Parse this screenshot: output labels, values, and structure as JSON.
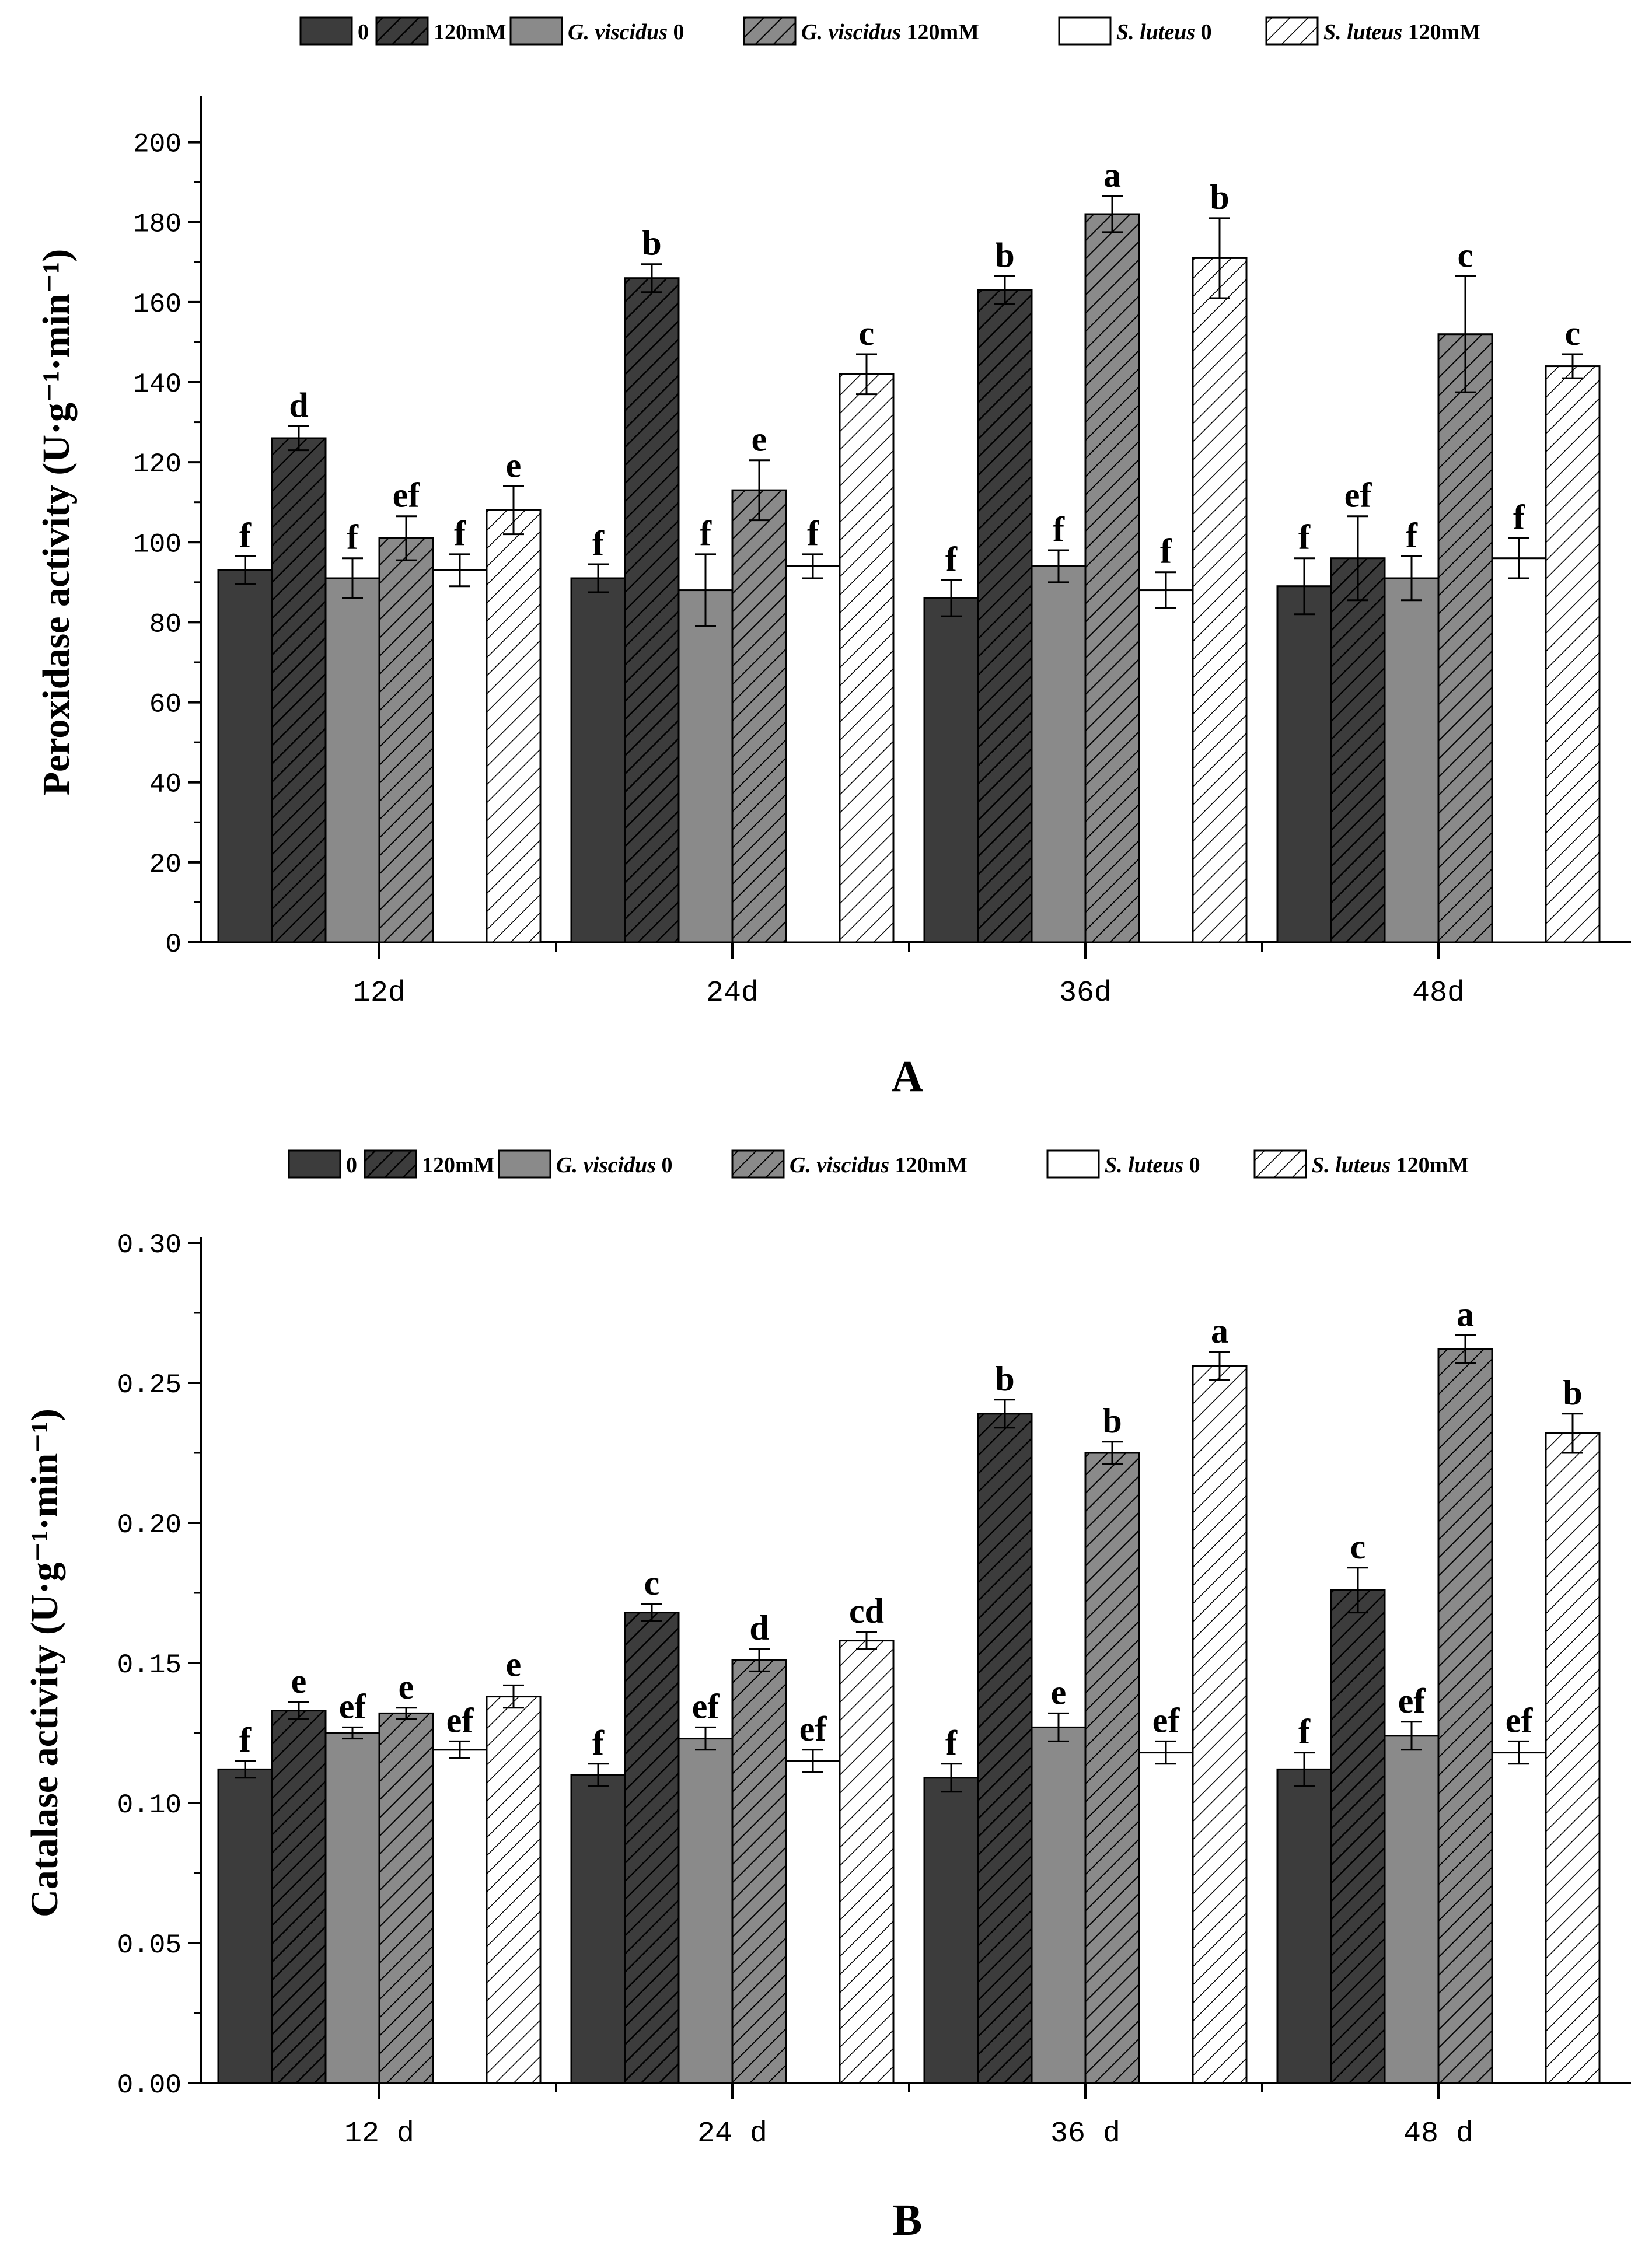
{
  "colors": {
    "control": "#3c3c3c",
    "gv": "#8a8a8a",
    "sl": "#ffffff",
    "stroke": "#000000"
  },
  "legend": [
    {
      "key": "c0",
      "italic": "",
      "rest": "0",
      "fill": "control",
      "hatch": false
    },
    {
      "key": "c120",
      "italic": "",
      "rest": "120mM",
      "fill": "control",
      "hatch": true
    },
    {
      "key": "gv0",
      "italic": "G. viscidus",
      "rest": " 0",
      "fill": "gv",
      "hatch": false
    },
    {
      "key": "gv120",
      "italic": "G. viscidus",
      "rest": " 120mM",
      "fill": "gv",
      "hatch": true
    },
    {
      "key": "sl0",
      "italic": "S. luteus",
      "rest": " 0",
      "fill": "sl",
      "hatch": false
    },
    {
      "key": "sl120",
      "italic": "S. luteus",
      "rest": " 120mM",
      "fill": "sl",
      "hatch": true
    }
  ],
  "chart_data": [
    {
      "type": "bar",
      "panel": "A",
      "ylabel": "Peroxidase activity (U·g⁻¹·min⁻¹)",
      "ylim": [
        0,
        210
      ],
      "yticks": [
        0,
        20,
        40,
        60,
        80,
        100,
        120,
        140,
        160,
        180,
        200
      ],
      "ytick_labels": [
        "0",
        "20",
        "40",
        "60",
        "80",
        "100",
        "120",
        "140",
        "160",
        "180",
        "200"
      ],
      "categories": [
        "12d",
        "24d",
        "36d",
        "48d"
      ],
      "series": [
        {
          "name": "0",
          "values": [
            93,
            91,
            86,
            89
          ],
          "errors": [
            3.5,
            3.5,
            4.5,
            7
          ],
          "letters": [
            "f",
            "f",
            "f",
            "f"
          ]
        },
        {
          "name": "120mM",
          "values": [
            126,
            166,
            163,
            96
          ],
          "errors": [
            3,
            3.5,
            3.5,
            10.5
          ],
          "letters": [
            "d",
            "b",
            "b",
            "ef"
          ]
        },
        {
          "name": "G. viscidus 0",
          "values": [
            91,
            88,
            94,
            91
          ],
          "errors": [
            5,
            9,
            4,
            5.5
          ],
          "letters": [
            "f",
            "f",
            "f",
            "f"
          ]
        },
        {
          "name": "G. viscidus 120mM",
          "values": [
            101,
            113,
            182,
            152
          ],
          "errors": [
            5.5,
            7.5,
            4.5,
            14.5
          ],
          "letters": [
            "ef",
            "e",
            "a",
            "c"
          ]
        },
        {
          "name": "S. luteus 0",
          "values": [
            93,
            94,
            88,
            96
          ],
          "errors": [
            4,
            3,
            4.5,
            5
          ],
          "letters": [
            "f",
            "f",
            "f",
            "f"
          ]
        },
        {
          "name": "S. luteus 120mM",
          "values": [
            108,
            142,
            171,
            144
          ],
          "errors": [
            6,
            5,
            10,
            3
          ],
          "letters": [
            "e",
            "c",
            "b",
            "c"
          ]
        }
      ]
    },
    {
      "type": "bar",
      "panel": "B",
      "ylabel": "Catalase activity (U·g⁻¹·min⁻¹)",
      "ylim": [
        0,
        0.3
      ],
      "yticks": [
        0,
        0.05,
        0.1,
        0.15,
        0.2,
        0.25,
        0.3
      ],
      "ytick_labels": [
        "0.00",
        "0.05",
        "0.10",
        "0.15",
        "0.20",
        "0.25",
        "0.30"
      ],
      "categories": [
        "12 d",
        "24 d",
        "36 d",
        "48 d"
      ],
      "series": [
        {
          "name": "0",
          "values": [
            0.112,
            0.11,
            0.109,
            0.112
          ],
          "errors": [
            0.003,
            0.004,
            0.005,
            0.006
          ],
          "letters": [
            "f",
            "f",
            "f",
            "f"
          ]
        },
        {
          "name": "120mM",
          "values": [
            0.133,
            0.168,
            0.239,
            0.176
          ],
          "errors": [
            0.003,
            0.003,
            0.005,
            0.008
          ],
          "letters": [
            "e",
            "c",
            "b",
            "c"
          ]
        },
        {
          "name": "G. viscidus 0",
          "values": [
            0.125,
            0.123,
            0.127,
            0.124
          ],
          "errors": [
            0.002,
            0.004,
            0.005,
            0.005
          ],
          "letters": [
            "ef",
            "ef",
            "e",
            "ef"
          ]
        },
        {
          "name": "G. viscidus 120mM",
          "values": [
            0.132,
            0.151,
            0.225,
            0.262
          ],
          "errors": [
            0.002,
            0.004,
            0.004,
            0.005
          ],
          "letters": [
            "e",
            "d",
            "b",
            "a"
          ]
        },
        {
          "name": "S. luteus 0",
          "values": [
            0.119,
            0.115,
            0.118,
            0.118
          ],
          "errors": [
            0.003,
            0.004,
            0.004,
            0.004
          ],
          "letters": [
            "ef",
            "ef",
            "ef",
            "ef"
          ]
        },
        {
          "name": "S. luteus 120mM",
          "values": [
            0.138,
            0.158,
            0.256,
            0.232
          ],
          "errors": [
            0.004,
            0.003,
            0.005,
            0.007
          ],
          "letters": [
            "e",
            "cd",
            "a",
            "b"
          ]
        }
      ]
    }
  ]
}
